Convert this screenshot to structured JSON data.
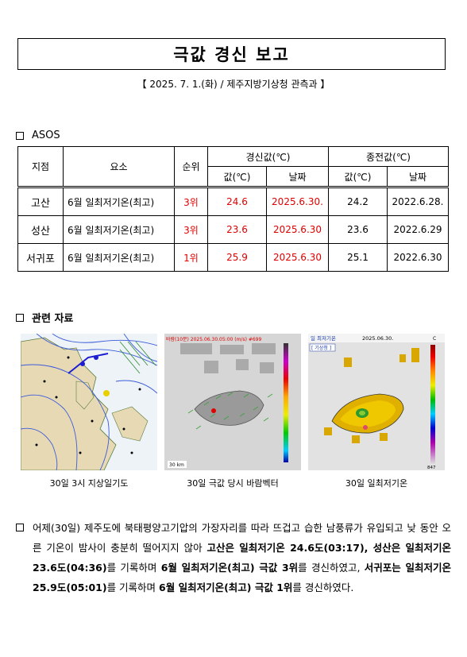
{
  "report": {
    "title": "극값 경신 보고",
    "subtitle": "【 2025. 7. 1.(화) / 제주지방기상청 관측과 】"
  },
  "section_asos": {
    "label": "ASOS"
  },
  "table": {
    "headers": {
      "station": "지점",
      "element": "요소",
      "rank": "순위",
      "new_group": "경신값(℃)",
      "old_group": "종전값(℃)",
      "value": "값(℃)",
      "date": "날짜"
    },
    "rows": [
      {
        "station": "고산",
        "element": "6월 일최저기온(최고)",
        "rank": "3위",
        "new_value": "24.6",
        "new_date": "2025.6.30.",
        "old_value": "24.2",
        "old_date": "2022.6.28."
      },
      {
        "station": "성산",
        "element": "6월 일최저기온(최고)",
        "rank": "3위",
        "new_value": "23.6",
        "new_date": "2025.6.30",
        "old_value": "23.6",
        "old_date": "2022.6.29"
      },
      {
        "station": "서귀포",
        "element": "6월 일최저기온(최고)",
        "rank": "1위",
        "new_value": "25.9",
        "new_date": "2025.6.30",
        "old_value": "25.1",
        "old_date": "2022.6.30"
      }
    ]
  },
  "section_related": {
    "label": "관련 자료"
  },
  "images": {
    "weather_chart": {
      "caption": "30일 3시 지상일기도"
    },
    "wind_vector": {
      "caption": "30일 극값 당시 바람벡터",
      "header": "바람(10분) 2025.06.30.05:00 (m/s) #699",
      "scale_label": "30 km"
    },
    "min_temp": {
      "caption": "30일 일최저기온",
      "header_title": "일 최저기온",
      "header_date": "2025.06.30.",
      "tag": "[ 기상청 ]",
      "unit": "C",
      "count": "847"
    }
  },
  "summary": {
    "p1": "어제(30일) 제주도에 북태평양고기압의 가장자리를 따라 뜨겁고 습한 남풍류가 유입되고 낮 동안 오른 기온이 밤사이 충분히 떨어지지 않아 ",
    "p2": "고산은 일최저기온 24.6도(03:17), 성산은 일최저기온 23.6도(04:36)",
    "p3": "를 기록하며 ",
    "p4": "6월 일최저기온(최고) 극값 3위",
    "p5": "를 경신하였고, ",
    "p6": "서귀포는 일최저기온 25.9도(05:01)",
    "p7": "를 기록하며 ",
    "p8": "6월 일최저기온(최고) 극값 1위",
    "p9": "를 경신하였다."
  },
  "colors": {
    "accent_red": "#e00000",
    "border": "#000000"
  }
}
